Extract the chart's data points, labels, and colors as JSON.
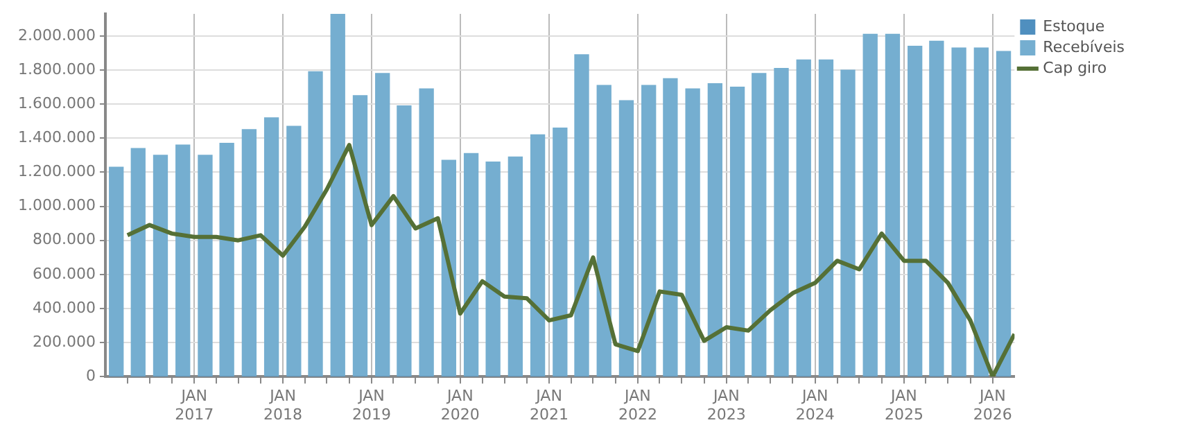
{
  "chart_data": {
    "type": "bar",
    "stacked": true,
    "legend": "right",
    "grid": true,
    "xlim": [
      "2016-01-01",
      "2026-04-01"
    ],
    "xticks": [
      {
        "value": "2016-04-01",
        "label": null
      },
      {
        "value": "2016-07-01",
        "label": null
      },
      {
        "value": "2016-10-01",
        "label": null
      },
      {
        "value": "2017-01-01",
        "label": "JAN 2017"
      },
      {
        "value": "2017-04-01",
        "label": null
      },
      {
        "value": "2017-07-01",
        "label": null
      },
      {
        "value": "2017-10-01",
        "label": null
      },
      {
        "value": "2018-01-01",
        "label": "JAN 2018"
      },
      {
        "value": "2018-04-01",
        "label": null
      },
      {
        "value": "2018-07-01",
        "label": null
      },
      {
        "value": "2018-10-01",
        "label": null
      },
      {
        "value": "2019-01-01",
        "label": "JAN 2019"
      },
      {
        "value": "2019-04-01",
        "label": null
      },
      {
        "value": "2019-07-01",
        "label": null
      },
      {
        "value": "2019-10-01",
        "label": null
      },
      {
        "value": "2020-01-01",
        "label": "JAN 2020"
      },
      {
        "value": "2020-04-01",
        "label": null
      },
      {
        "value": "2020-07-01",
        "label": null
      },
      {
        "value": "2020-10-01",
        "label": null
      },
      {
        "value": "2021-01-01",
        "label": "JAN 2021"
      },
      {
        "value": "2021-04-01",
        "label": null
      },
      {
        "value": "2021-07-01",
        "label": null
      },
      {
        "value": "2021-10-01",
        "label": null
      },
      {
        "value": "2022-01-01",
        "label": "JAN 2022"
      },
      {
        "value": "2022-04-01",
        "label": null
      },
      {
        "value": "2022-07-01",
        "label": null
      },
      {
        "value": "2022-10-01",
        "label": null
      },
      {
        "value": "2023-01-01",
        "label": "JAN 2023"
      },
      {
        "value": "2023-04-01",
        "label": null
      },
      {
        "value": "2023-07-01",
        "label": null
      },
      {
        "value": "2023-10-01",
        "label": null
      },
      {
        "value": "2024-01-01",
        "label": "JAN 2024"
      },
      {
        "value": "2024-04-01",
        "label": null
      },
      {
        "value": "2024-07-01",
        "label": null
      },
      {
        "value": "2024-10-01",
        "label": null
      },
      {
        "value": "2025-01-01",
        "label": "JAN 2025"
      },
      {
        "value": "2025-04-01",
        "label": null
      },
      {
        "value": "2025-07-01",
        "label": null
      },
      {
        "value": "2025-10-01",
        "label": null
      },
      {
        "value": "2026-01-01",
        "label": "JAN 2026"
      }
    ],
    "ylim": [
      0,
      2130000
    ],
    "yticks": [
      {
        "value": 0,
        "label": "0"
      },
      {
        "value": 200000,
        "label": "200.000"
      },
      {
        "value": 400000,
        "label": "400.000"
      },
      {
        "value": 600000,
        "label": "600.000"
      },
      {
        "value": 800000,
        "label": "800.000"
      },
      {
        "value": 1000000,
        "label": "1.000.000"
      },
      {
        "value": 1200000,
        "label": "1.200.000"
      },
      {
        "value": 1400000,
        "label": "1.400.000"
      },
      {
        "value": 1600000,
        "label": "1.600.000"
      },
      {
        "value": 1800000,
        "label": "1.800.000"
      },
      {
        "value": 2000000,
        "label": "2.000.000"
      }
    ],
    "x": [
      "2016-02-15",
      "2016-05-15",
      "2016-08-15",
      "2016-11-15",
      "2017-02-15",
      "2017-05-15",
      "2017-08-15",
      "2017-11-15",
      "2018-02-15",
      "2018-05-15",
      "2018-08-15",
      "2018-11-15",
      "2019-02-15",
      "2019-05-15",
      "2019-08-15",
      "2019-11-15",
      "2020-02-15",
      "2020-05-15",
      "2020-08-15",
      "2020-11-15",
      "2021-02-15",
      "2021-05-15",
      "2021-08-15",
      "2021-11-15",
      "2022-02-15",
      "2022-05-15",
      "2022-08-15",
      "2022-11-15",
      "2023-02-15",
      "2023-05-15",
      "2023-08-15",
      "2023-11-15",
      "2024-02-15",
      "2024-05-15",
      "2024-08-15",
      "2024-11-15",
      "2025-02-15",
      "2025-05-15",
      "2025-08-15",
      "2025-11-15",
      "2026-02-15"
    ],
    "series": [
      {
        "name": "Estoque",
        "color": "#4f8fbf",
        "values": [
          0,
          0,
          0,
          0,
          0,
          0,
          0,
          0,
          0,
          0,
          0,
          0,
          0,
          0,
          0,
          0,
          0,
          0,
          0,
          0,
          0,
          0,
          0,
          0,
          0,
          0,
          0,
          0,
          0,
          0,
          0,
          0,
          0,
          0,
          0,
          0,
          0,
          0,
          0,
          0,
          0
        ]
      },
      {
        "name": "Recebíveis",
        "color": "#75aed0",
        "values": [
          1230000,
          1340000,
          1300000,
          1360000,
          1300000,
          1370000,
          1450000,
          1520000,
          1470000,
          1790000,
          2130000,
          1650000,
          1780000,
          1590000,
          1690000,
          1270000,
          1310000,
          1260000,
          1290000,
          1420000,
          1460000,
          1890000,
          1710000,
          1620000,
          1710000,
          1750000,
          1690000,
          1720000,
          1700000,
          1780000,
          1810000,
          1860000,
          1860000,
          1800000,
          2010000,
          2010000,
          1940000,
          1970000,
          1930000,
          1930000,
          1910000
        ]
      },
      {
        "name": "Cap giro",
        "type": "line",
        "color": "#557036",
        "marker": "none",
        "x": [
          "2016-04-01",
          "2016-07-01",
          "2016-10-01",
          "2017-01-01",
          "2017-04-01",
          "2017-07-01",
          "2017-10-01",
          "2018-01-01",
          "2018-04-01",
          "2018-07-01",
          "2018-10-01",
          "2019-01-01",
          "2019-04-01",
          "2019-07-01",
          "2019-10-01",
          "2020-01-01",
          "2020-04-01",
          "2020-07-01",
          "2020-10-01",
          "2021-01-01",
          "2021-04-01",
          "2021-07-01",
          "2021-10-01",
          "2022-01-01",
          "2022-04-01",
          "2022-07-01",
          "2022-10-01",
          "2023-01-01",
          "2023-04-01",
          "2023-07-01",
          "2023-10-01",
          "2024-01-01",
          "2024-04-01",
          "2024-07-01",
          "2024-10-01",
          "2025-01-01",
          "2025-04-01",
          "2025-07-01",
          "2025-10-01",
          "2026-01-01",
          "2026-04-01"
        ],
        "values": [
          830000,
          890000,
          840000,
          820000,
          820000,
          800000,
          830000,
          710000,
          880000,
          1100000,
          1360000,
          890000,
          1060000,
          870000,
          930000,
          370000,
          560000,
          470000,
          460000,
          330000,
          360000,
          700000,
          190000,
          150000,
          500000,
          480000,
          210000,
          290000,
          270000,
          390000,
          490000,
          550000,
          680000,
          630000,
          840000,
          680000,
          680000,
          550000,
          330000,
          0,
          250000
        ]
      }
    ]
  }
}
